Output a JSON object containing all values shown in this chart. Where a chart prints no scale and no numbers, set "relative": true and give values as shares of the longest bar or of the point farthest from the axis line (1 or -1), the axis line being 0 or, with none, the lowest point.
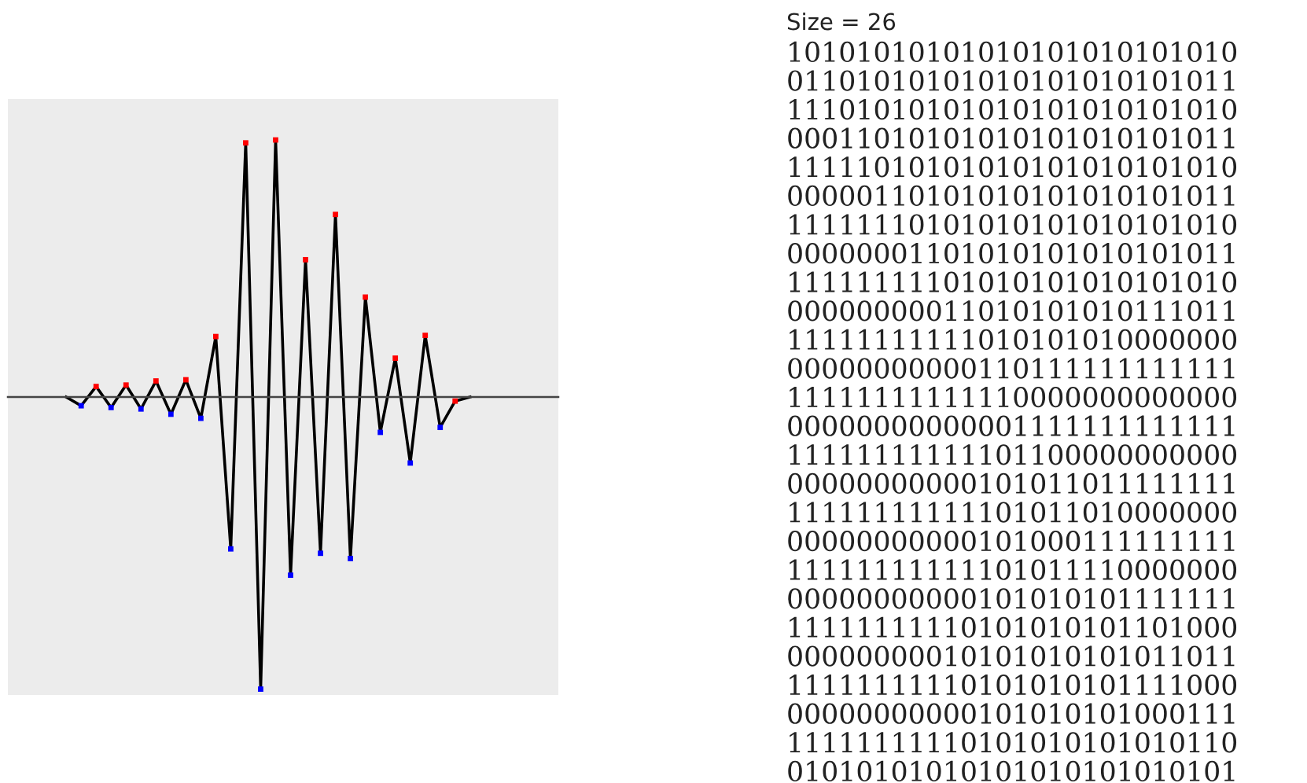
{
  "chart_data": [
    {
      "type": "line",
      "relative": true,
      "categories": [
        null,
        null,
        null,
        null,
        null,
        null,
        null,
        null,
        null,
        null,
        null,
        null,
        null,
        null,
        null,
        null,
        null,
        null,
        null,
        null,
        null,
        null,
        null,
        null,
        null,
        null,
        null,
        null
      ],
      "series": [
        {
          "type": "line",
          "color": "#000000",
          "marker": "square",
          "line_style": "solid",
          "values": [
            0,
            -0.03,
            0.036,
            -0.036,
            0.041,
            -0.041,
            0.055,
            -0.059,
            0.059,
            -0.073,
            0.207,
            -0.52,
            0.87,
            -1,
            0.88,
            -0.61,
            0.47,
            -0.535,
            0.625,
            -0.553,
            0.342,
            -0.121,
            0.133,
            -0.226,
            0.211,
            -0.104,
            -0.014,
            0
          ],
          "colors": [
            null,
            "#0000ff",
            "#ff0000",
            "#0000ff",
            "#ff0000",
            "#0000ff",
            "#ff0000",
            "#0000ff",
            "#ff0000",
            "#0000ff",
            "#ff0000",
            "#0000ff",
            "#ff0000",
            "#0000ff",
            "#ff0000",
            "#0000ff",
            "#ff0000",
            "#0000ff",
            "#ff0000",
            "#0000ff",
            "#ff0000",
            "#0000ff",
            "#ff0000",
            "#0000ff",
            "#ff0000",
            "#0000ff",
            "#ff0000",
            null
          ]
        }
      ]
    },
    {
      "type": "other",
      "title": "Size = 26",
      "annotations": [
        "10101010101010101010101010",
        "01101010101010101010101011",
        "11101010101010101010101010",
        "00011010101010101010101011",
        "11111010101010101010101010",
        "00000110101010101010101011",
        "11111110101010101010101010",
        "00000001101010101010101011",
        "11111111101010101010101010",
        "00000000011010101010111011",
        "11111111111010101010000000",
        "00000000000110111111111111",
        "11111111111110000000000000",
        "00000000000001111111111111",
        "11111111111101100000000000",
        "00000000000101011011111111",
        "11111111111101011010000000",
        "00000000000101000111111111",
        "11111111111101011110000000",
        "00000000000101010101111111",
        "11111111110101010101101000",
        "00000000010101010101011011",
        "11111111110101010101111000",
        "00000000000101010101000111",
        "11111111110101010101010110",
        "01010101010101010101010101"
      ]
    }
  ]
}
